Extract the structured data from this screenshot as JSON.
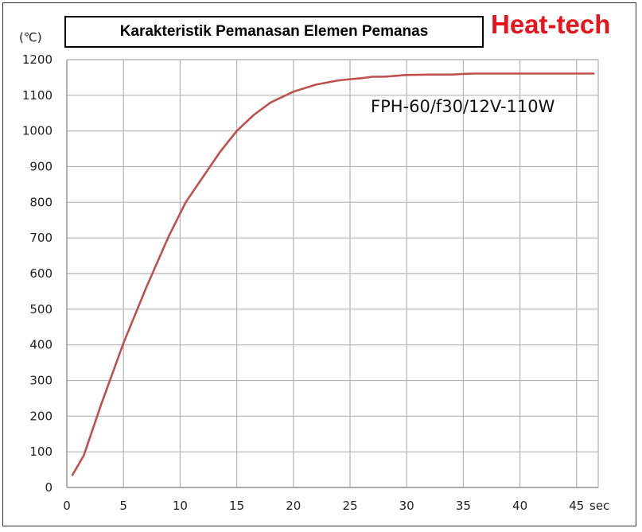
{
  "brand": "Heat-tech",
  "chart_data": {
    "type": "line",
    "title": "Karakteristik Pemanasan Elemen Pemanas",
    "ylabel": "(℃)",
    "xlabel": "sec",
    "xlim": [
      0,
      47
    ],
    "ylim": [
      0,
      1200
    ],
    "xticks": [
      0,
      5,
      10,
      15,
      20,
      25,
      30,
      35,
      40,
      45
    ],
    "yticks": [
      0,
      100,
      200,
      300,
      400,
      500,
      600,
      700,
      800,
      900,
      1000,
      1100,
      1200
    ],
    "grid": true,
    "annotation": "FPH-60/f30/12V-110W",
    "series": [
      {
        "color": "#c0504d",
        "x": [
          0.5,
          1.5,
          3,
          5,
          7,
          9,
          10.5,
          12,
          13.5,
          15,
          16.5,
          18,
          20,
          22,
          24,
          26,
          27,
          28,
          30,
          32,
          34,
          35,
          36,
          38,
          40,
          42,
          44,
          46.5
        ],
        "y": [
          35,
          90,
          230,
          405,
          560,
          705,
          800,
          870,
          940,
          1000,
          1045,
          1080,
          1110,
          1130,
          1142,
          1148,
          1152,
          1152,
          1157,
          1158,
          1158,
          1160,
          1161,
          1161,
          1161,
          1161,
          1161,
          1161
        ]
      }
    ]
  }
}
